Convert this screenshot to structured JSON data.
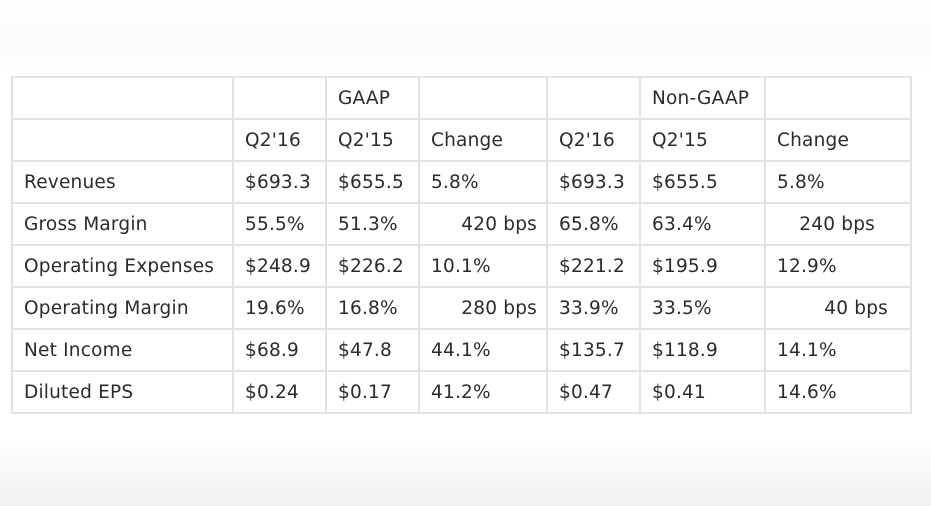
{
  "table": {
    "group_header": [
      "",
      "",
      "GAAP",
      "",
      "",
      "Non-GAAP",
      ""
    ],
    "column_header": [
      "",
      "Q2'16",
      "Q2'15",
      "Change",
      "Q2'16",
      "Q2'15",
      "Change"
    ],
    "rows": [
      {
        "label": "Revenues",
        "cells": [
          "$693.3",
          "$655.5",
          "5.8%",
          "$693.3",
          "$655.5",
          "5.8%"
        ]
      },
      {
        "label": "Gross Margin",
        "cells": [
          "55.5%",
          "51.3%",
          "420 bps",
          "65.8%",
          "63.4%",
          "240 bps"
        ]
      },
      {
        "label": "Operating Expenses",
        "cells": [
          "$248.9",
          "$226.2",
          "10.1%",
          "$221.2",
          "$195.9",
          "12.9%"
        ]
      },
      {
        "label": "Operating Margin",
        "cells": [
          "19.6%",
          "16.8%",
          "280 bps",
          "33.9%",
          "33.5%",
          "40 bps"
        ]
      },
      {
        "label": "Net Income",
        "cells": [
          "$68.9",
          "$47.8",
          "44.1%",
          "$135.7",
          "$118.9",
          "14.1%"
        ]
      },
      {
        "label": "Diluted EPS",
        "cells": [
          "$0.24",
          "$0.17",
          "41.2%",
          "$0.47",
          "$0.41",
          "14.6%"
        ]
      }
    ]
  }
}
